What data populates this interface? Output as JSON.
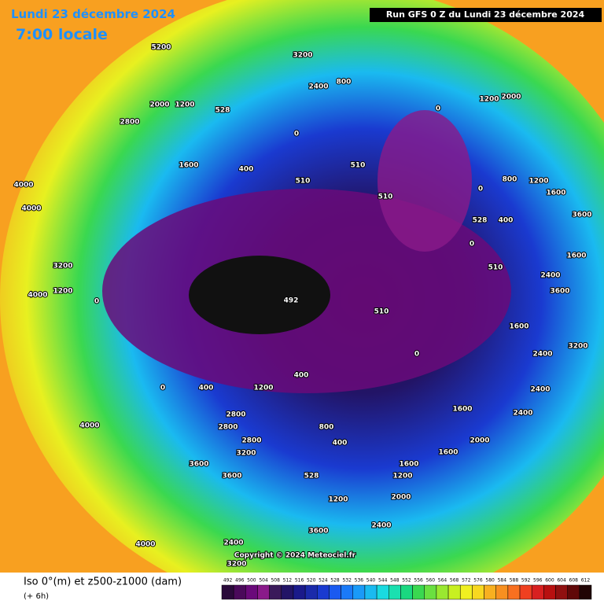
{
  "header": {
    "date": "Lundi 23 décembre 2024",
    "time": "7:00 locale",
    "run": "Run GFS 0 Z du Lundi 23 décembre 2024"
  },
  "map": {
    "labels": [
      "5200",
      "3200",
      "2400",
      "800",
      "2000",
      "1200",
      "528",
      "2800",
      "0",
      "1600",
      "400",
      "510",
      "510",
      "510",
      "4000",
      "4000",
      "3200",
      "1200",
      "4000",
      "0",
      "492",
      "510",
      "0",
      "1200",
      "2000",
      "528",
      "400",
      "0",
      "510",
      "2400",
      "3600",
      "1600",
      "2400",
      "0",
      "400",
      "0",
      "400",
      "1200",
      "2800",
      "2800",
      "2800",
      "3200",
      "3600",
      "3600",
      "4000",
      "800",
      "400",
      "528",
      "1200",
      "1600",
      "2000",
      "1200",
      "2400",
      "3600",
      "4000",
      "2400",
      "3200",
      "2400",
      "1600",
      "2400",
      "1600",
      "2000",
      "3200",
      "1600",
      "1600",
      "3600",
      "1200",
      "800",
      "0"
    ],
    "copyright": "Copyright © 2024 Meteociel.fr"
  },
  "footer": {
    "title": "Iso 0°(m) et z500-z1000 (dam)",
    "step": "(+ 6h)"
  },
  "scale": {
    "labels": [
      492,
      496,
      500,
      504,
      508,
      512,
      516,
      520,
      524,
      528,
      532,
      536,
      540,
      544,
      548,
      552,
      556,
      560,
      564,
      568,
      572,
      576,
      580,
      584,
      588,
      592,
      596,
      600,
      604,
      608,
      612
    ],
    "colors": [
      "#2a0a3a",
      "#4a0a5a",
      "#6a0a7a",
      "#8a1a8a",
      "#3a1a5a",
      "#221466",
      "#1a1a8a",
      "#1a2aaa",
      "#1a3ad0",
      "#1a5af0",
      "#1a7af8",
      "#1a9af8",
      "#1abaf0",
      "#1adae0",
      "#1ae0b0",
      "#1ad880",
      "#3ad850",
      "#6ae040",
      "#9ae830",
      "#c8f020",
      "#f0f020",
      "#f8d820",
      "#f8b020",
      "#f89020",
      "#f87020",
      "#f04020",
      "#d82020",
      "#b81010",
      "#901010",
      "#600808",
      "#200404"
    ]
  }
}
